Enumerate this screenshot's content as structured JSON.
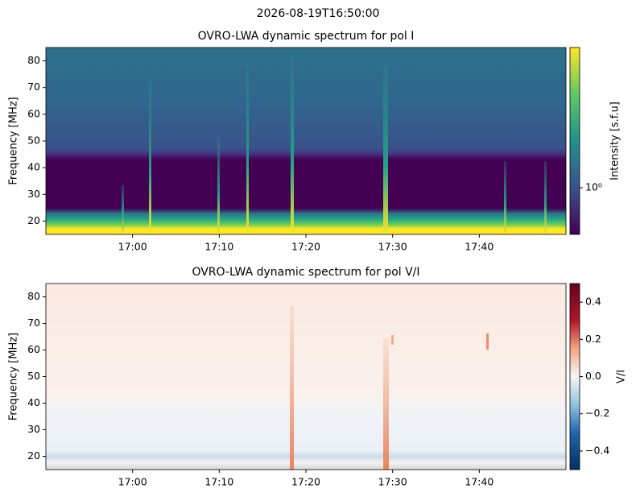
{
  "suptitle": "2026-08-19T16:50:00",
  "chart_data": [
    {
      "type": "heatmap",
      "title": "OVRO-LWA dynamic spectrum for pol I",
      "ylabel": "Frequency [MHz]",
      "xlim": [
        "16:50",
        "17:50"
      ],
      "xticks": [
        "17:00",
        "17:10",
        "17:20",
        "17:30",
        "17:40"
      ],
      "ylim": [
        15,
        85
      ],
      "yticks": [
        20,
        30,
        40,
        50,
        60,
        70,
        80
      ],
      "colorbar": {
        "label": "Intensity [s.f.u]",
        "scale": "log",
        "colormap": "viridis",
        "clim": [
          0.5,
          8
        ],
        "ticks": [
          {
            "value": 1,
            "label": "10⁰"
          }
        ]
      }
    },
    {
      "type": "heatmap",
      "title": "OVRO-LWA dynamic spectrum for pol V/I",
      "ylabel": "Frequency [MHz]",
      "xlim": [
        "16:50",
        "17:50"
      ],
      "xticks": [
        "17:00",
        "17:10",
        "17:20",
        "17:30",
        "17:40"
      ],
      "ylim": [
        15,
        85
      ],
      "yticks": [
        20,
        30,
        40,
        50,
        60,
        70,
        80
      ],
      "colorbar": {
        "label": "V/I",
        "scale": "linear",
        "colormap": "RdBu_r",
        "clim": [
          -0.5,
          0.5
        ],
        "ticks": [
          {
            "value": -0.4,
            "label": "−0.4"
          },
          {
            "value": -0.2,
            "label": "−0.2"
          },
          {
            "value": 0,
            "label": "0.0"
          },
          0.2,
          0.4
        ]
      }
    }
  ]
}
